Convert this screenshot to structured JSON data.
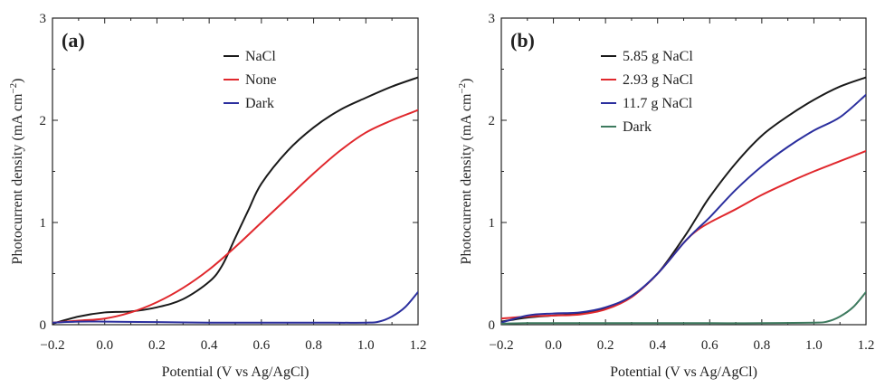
{
  "chart_data": [
    {
      "type": "line",
      "panel_label": "(a)",
      "xlabel": "Potential (V vs Ag/AgCl)",
      "ylabel": "Photocurrent density (mA cm−2)",
      "ylabel_main": "Photocurrent density (mA cm",
      "ylabel_sup": "−2",
      "ylabel_close": ")",
      "xlim": [
        -0.2,
        1.2
      ],
      "ylim": [
        0,
        3
      ],
      "xticks": [
        -0.2,
        0.0,
        0.2,
        0.4,
        0.6,
        0.8,
        1.0,
        1.2
      ],
      "xtick_labels": [
        "−0.2",
        "0.0",
        "0.2",
        "0.4",
        "0.6",
        "0.8",
        "1.0",
        "1.2"
      ],
      "yticks": [
        0,
        1,
        2,
        3
      ],
      "ytick_labels": [
        "0",
        "1",
        "2",
        "3"
      ],
      "grid": false,
      "legend_position": "top-right",
      "series": [
        {
          "name": "NaCl",
          "color": "#1a1a1a",
          "x": [
            -0.2,
            -0.1,
            0.0,
            0.1,
            0.2,
            0.3,
            0.4,
            0.45,
            0.5,
            0.55,
            0.6,
            0.7,
            0.8,
            0.9,
            1.0,
            1.1,
            1.2
          ],
          "y": [
            0.01,
            0.08,
            0.12,
            0.13,
            0.17,
            0.25,
            0.42,
            0.58,
            0.85,
            1.12,
            1.38,
            1.7,
            1.93,
            2.1,
            2.22,
            2.33,
            2.42
          ]
        },
        {
          "name": "None",
          "color": "#e0282d",
          "x": [
            -0.2,
            -0.1,
            0.0,
            0.1,
            0.2,
            0.3,
            0.4,
            0.5,
            0.6,
            0.7,
            0.8,
            0.9,
            1.0,
            1.1,
            1.2
          ],
          "y": [
            0.02,
            0.04,
            0.06,
            0.12,
            0.22,
            0.36,
            0.54,
            0.76,
            1.0,
            1.24,
            1.48,
            1.7,
            1.88,
            2.0,
            2.1
          ]
        },
        {
          "name": "Dark",
          "color": "#2b2f9e",
          "x": [
            -0.2,
            -0.1,
            0.0,
            0.2,
            0.4,
            0.6,
            0.8,
            1.0,
            1.05,
            1.1,
            1.15,
            1.2
          ],
          "y": [
            0.02,
            0.03,
            0.03,
            0.025,
            0.02,
            0.02,
            0.02,
            0.02,
            0.03,
            0.08,
            0.17,
            0.32
          ]
        }
      ]
    },
    {
      "type": "line",
      "panel_label": "(b)",
      "xlabel": "Potential (V vs Ag/AgCl)",
      "ylabel": "Photocurrent density (mA cm−2)",
      "ylabel_main": "Photocurrent density (mA cm",
      "ylabel_sup": "−2",
      "ylabel_close": ")",
      "xlim": [
        -0.2,
        1.2
      ],
      "ylim": [
        0,
        3
      ],
      "xticks": [
        -0.2,
        0.0,
        0.2,
        0.4,
        0.6,
        0.8,
        1.0,
        1.2
      ],
      "xtick_labels": [
        "−0.2",
        "0.0",
        "0.2",
        "0.4",
        "0.6",
        "0.8",
        "1.0",
        "1.2"
      ],
      "yticks": [
        0,
        1,
        2,
        3
      ],
      "ytick_labels": [
        "0",
        "1",
        "2",
        "3"
      ],
      "grid": false,
      "legend_position": "top-right",
      "series": [
        {
          "name": "5.85 g NaCl",
          "color": "#1a1a1a",
          "x": [
            -0.2,
            -0.1,
            0.0,
            0.1,
            0.2,
            0.3,
            0.4,
            0.5,
            0.55,
            0.6,
            0.7,
            0.8,
            0.9,
            1.0,
            1.1,
            1.2
          ],
          "y": [
            0.03,
            0.07,
            0.09,
            0.11,
            0.16,
            0.28,
            0.5,
            0.85,
            1.05,
            1.25,
            1.58,
            1.85,
            2.04,
            2.2,
            2.33,
            2.42
          ]
        },
        {
          "name": "2.93 g NaCl",
          "color": "#e0282d",
          "x": [
            -0.2,
            -0.1,
            0.0,
            0.1,
            0.2,
            0.3,
            0.4,
            0.5,
            0.55,
            0.6,
            0.7,
            0.8,
            0.9,
            1.0,
            1.1,
            1.2
          ],
          "y": [
            0.06,
            0.08,
            0.09,
            0.1,
            0.15,
            0.27,
            0.5,
            0.8,
            0.92,
            1.0,
            1.13,
            1.27,
            1.39,
            1.5,
            1.6,
            1.7
          ]
        },
        {
          "name": "11.7 g NaCl",
          "color": "#2b2f9e",
          "x": [
            -0.2,
            -0.1,
            0.0,
            0.1,
            0.2,
            0.3,
            0.4,
            0.5,
            0.55,
            0.6,
            0.7,
            0.8,
            0.9,
            1.0,
            1.1,
            1.2
          ],
          "y": [
            0.02,
            0.09,
            0.11,
            0.12,
            0.17,
            0.28,
            0.5,
            0.8,
            0.93,
            1.05,
            1.32,
            1.55,
            1.74,
            1.9,
            2.03,
            2.25
          ]
        },
        {
          "name": "Dark",
          "color": "#3d7a5e",
          "x": [
            -0.2,
            -0.1,
            0.0,
            0.2,
            0.4,
            0.6,
            0.8,
            1.0,
            1.05,
            1.1,
            1.15,
            1.2
          ],
          "y": [
            0.01,
            0.015,
            0.015,
            0.015,
            0.015,
            0.015,
            0.015,
            0.02,
            0.03,
            0.08,
            0.17,
            0.32
          ]
        }
      ]
    }
  ]
}
